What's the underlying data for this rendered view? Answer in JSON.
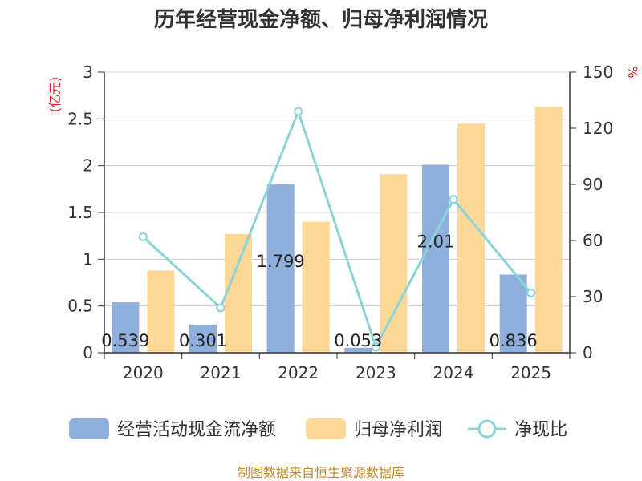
{
  "chart_data": {
    "type": "bar",
    "title": "历年经营现金净额、归母净利润情况",
    "categories": [
      "2020",
      "2021",
      "2022",
      "2023",
      "2024",
      "2025"
    ],
    "y_left": {
      "unit": "(亿元)",
      "ylim": [
        0,
        3
      ],
      "ticks": [
        "0",
        "0.5",
        "1",
        "1.5",
        "2",
        "2.5",
        "3"
      ]
    },
    "y_right": {
      "unit": "%",
      "ylim": [
        0,
        150
      ],
      "ticks": [
        "0",
        "30",
        "60",
        "90",
        "120",
        "150"
      ]
    },
    "series": [
      {
        "name": "经营活动现金流净额",
        "type": "bar",
        "axis": "left",
        "color": "#8eaedc",
        "values": [
          0.539,
          0.301,
          1.799,
          0.053,
          2.01,
          0.836
        ],
        "labels": [
          "0.539",
          "0.301",
          "1.799",
          "0.053",
          "2.01",
          "0.836"
        ]
      },
      {
        "name": "归母净利润",
        "type": "bar",
        "axis": "left",
        "color": "#ffd898",
        "values": [
          0.88,
          1.27,
          1.4,
          1.91,
          2.45,
          2.63
        ]
      },
      {
        "name": "净现比",
        "type": "line",
        "axis": "right",
        "color": "#88d4d8",
        "values": [
          62,
          24,
          129,
          3,
          82,
          32
        ]
      }
    ],
    "grid": true,
    "legend_position": "bottom"
  },
  "footer": {
    "source": "制图数据来自恒生聚源数据库"
  }
}
